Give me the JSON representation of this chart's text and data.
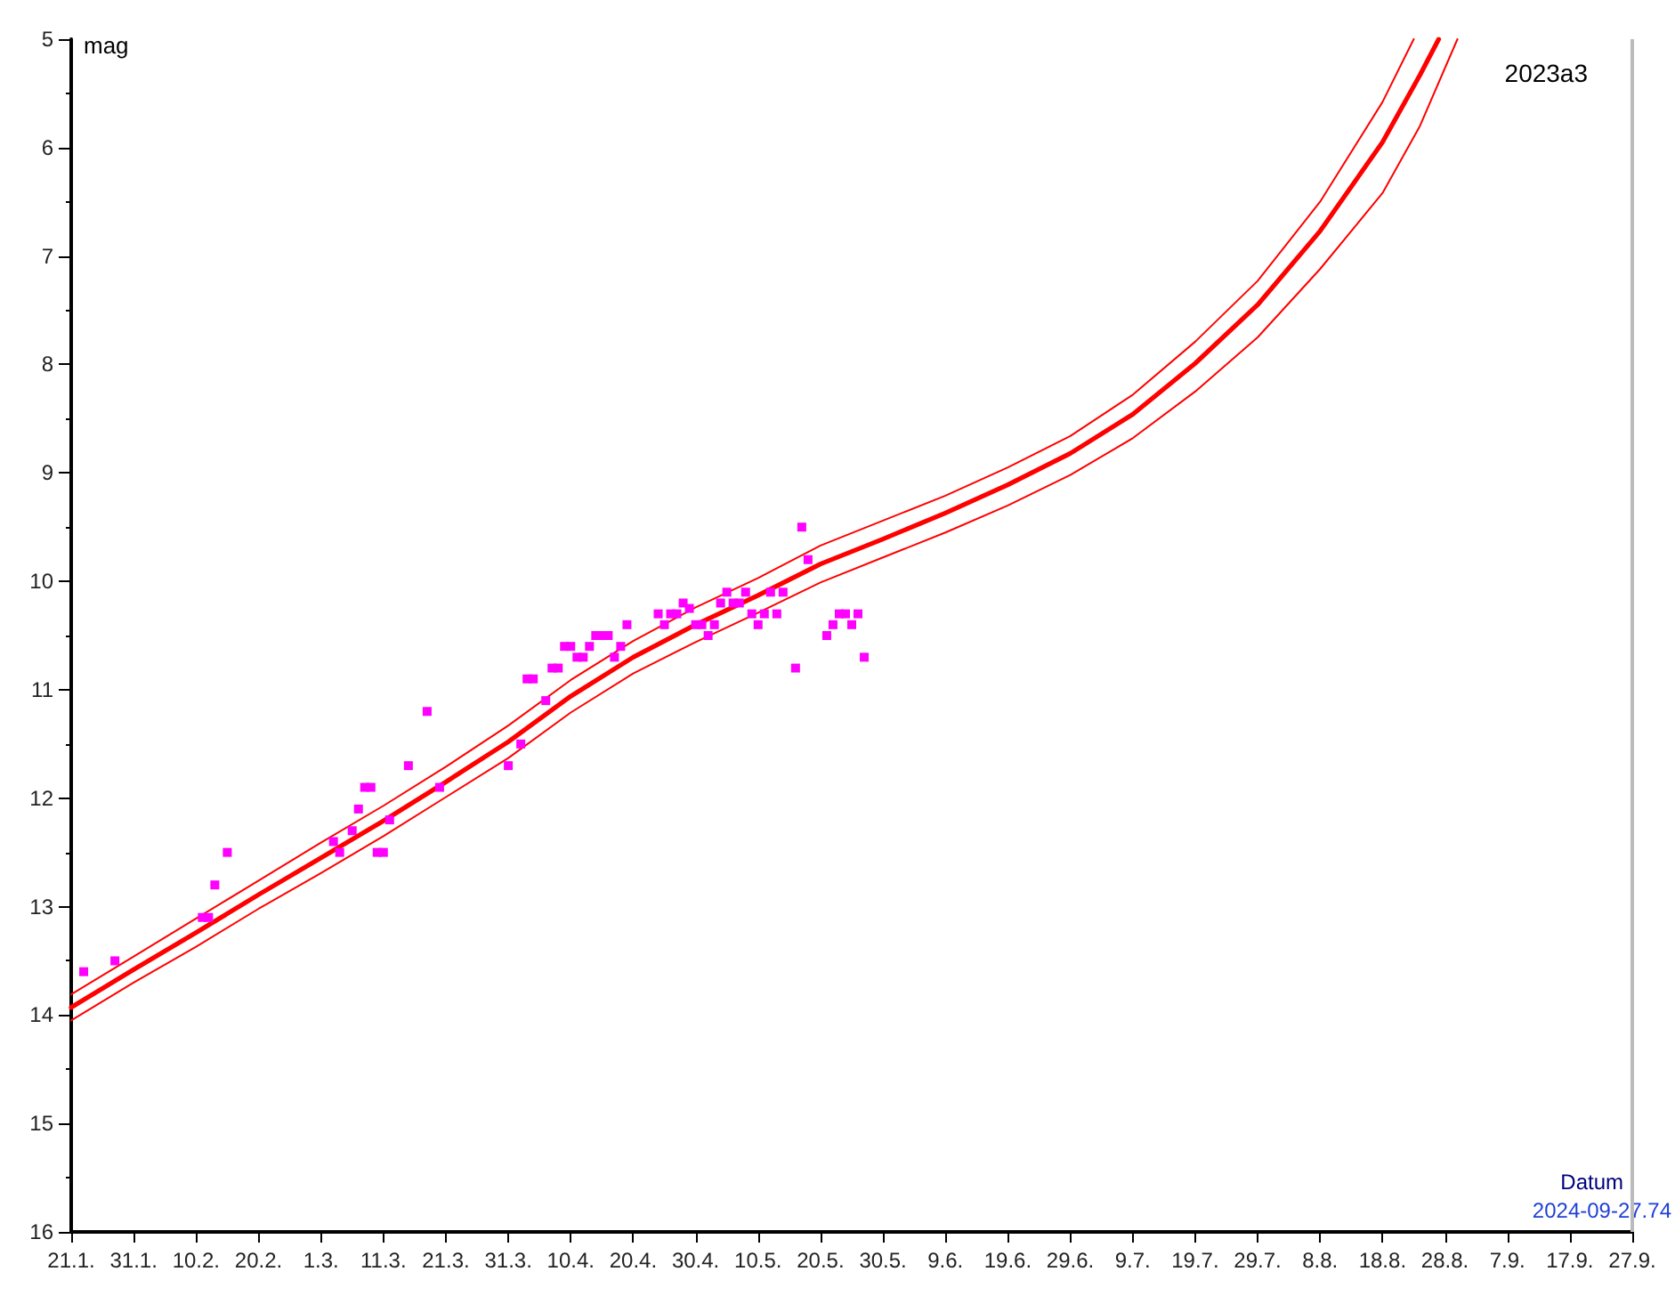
{
  "chart_data": {
    "type": "scatter",
    "title": "2023a3",
    "xlabel": "Datum",
    "ylabel": "mag",
    "xlim": [
      "2024-01-21",
      "2024-09-27"
    ],
    "xticks": [
      {
        "value": "2024-01-21",
        "label": "21.1."
      },
      {
        "value": "2024-01-31",
        "label": "31.1."
      },
      {
        "value": "2024-02-10",
        "label": "10.2."
      },
      {
        "value": "2024-02-20",
        "label": "20.2."
      },
      {
        "value": "2024-03-01",
        "label": "1.3."
      },
      {
        "value": "2024-03-11",
        "label": "11.3."
      },
      {
        "value": "2024-03-21",
        "label": "21.3."
      },
      {
        "value": "2024-03-31",
        "label": "31.3."
      },
      {
        "value": "2024-04-10",
        "label": "10.4."
      },
      {
        "value": "2024-04-20",
        "label": "20.4."
      },
      {
        "value": "2024-04-30",
        "label": "30.4."
      },
      {
        "value": "2024-05-10",
        "label": "10.5."
      },
      {
        "value": "2024-05-20",
        "label": "20.5."
      },
      {
        "value": "2024-05-30",
        "label": "30.5."
      },
      {
        "value": "2024-06-09",
        "label": "9.6."
      },
      {
        "value": "2024-06-19",
        "label": "19.6."
      },
      {
        "value": "2024-06-29",
        "label": "29.6."
      },
      {
        "value": "2024-07-09",
        "label": "9.7."
      },
      {
        "value": "2024-07-19",
        "label": "19.7."
      },
      {
        "value": "2024-07-29",
        "label": "29.7."
      },
      {
        "value": "2024-08-08",
        "label": "8.8."
      },
      {
        "value": "2024-08-18",
        "label": "18.8."
      },
      {
        "value": "2024-08-28",
        "label": "28.8."
      },
      {
        "value": "2024-09-07",
        "label": "7.9."
      },
      {
        "value": "2024-09-17",
        "label": "17.9."
      },
      {
        "value": "2024-09-27",
        "label": "27.9."
      }
    ],
    "ylim": [
      16,
      5
    ],
    "yticks": [
      5,
      {
        "value": 5.5,
        "label": null
      },
      6,
      {
        "value": 6.5,
        "label": null
      },
      7,
      {
        "value": 7.5,
        "label": null
      },
      8,
      {
        "value": 8.5,
        "label": null
      },
      9,
      {
        "value": 9.5,
        "label": null
      },
      10,
      {
        "value": 10.5,
        "label": null
      },
      11,
      {
        "value": 11.5,
        "label": null
      },
      12,
      {
        "value": 12.5,
        "label": null
      },
      13,
      {
        "value": 13.5,
        "label": null
      },
      14,
      {
        "value": 14.5,
        "label": null
      },
      15,
      {
        "value": 15.5,
        "label": null
      },
      16
    ],
    "ref_lines": [
      {
        "axis": "x",
        "value": "2024-09-27",
        "label": "2024-09-27.74",
        "color": "#bbbbbb"
      }
    ],
    "series": [
      {
        "type": "line",
        "color": "#ff0000",
        "x": [
          "2024-01-21",
          "2024-01-31",
          "2024-02-10",
          "2024-02-20",
          "2024-03-01",
          "2024-03-11",
          "2024-03-21",
          "2024-03-31",
          "2024-04-10",
          "2024-04-20",
          "2024-04-30",
          "2024-05-10",
          "2024-05-20",
          "2024-05-30",
          "2024-06-09",
          "2024-06-19",
          "2024-06-29",
          "2024-07-09",
          "2024-07-19",
          "2024-07-29",
          "2024-08-08",
          "2024-08-18",
          "2024-08-24",
          "2024-08-27"
        ],
        "values": [
          13.93,
          13.58,
          13.24,
          12.89,
          12.55,
          12.21,
          11.85,
          11.48,
          11.06,
          10.7,
          10.4,
          10.13,
          9.84,
          9.61,
          9.37,
          9.11,
          8.82,
          8.46,
          7.99,
          7.45,
          6.77,
          5.95,
          5.33,
          5.0
        ]
      },
      {
        "type": "line",
        "color": "#ff0000",
        "x": [
          "2024-01-21",
          "2024-01-31",
          "2024-02-10",
          "2024-02-20",
          "2024-03-01",
          "2024-03-11",
          "2024-03-21",
          "2024-03-31",
          "2024-04-10",
          "2024-04-20",
          "2024-04-30",
          "2024-05-10",
          "2024-05-20",
          "2024-05-30",
          "2024-06-09",
          "2024-06-19",
          "2024-06-29",
          "2024-07-09",
          "2024-07-19",
          "2024-07-29",
          "2024-08-08",
          "2024-08-18",
          "2024-08-23"
        ],
        "values": [
          13.81,
          13.46,
          13.11,
          12.76,
          12.41,
          12.07,
          11.71,
          11.33,
          10.91,
          10.55,
          10.24,
          9.97,
          9.67,
          9.44,
          9.21,
          8.95,
          8.66,
          8.28,
          7.79,
          7.23,
          6.5,
          5.58,
          5.0
        ]
      },
      {
        "type": "line",
        "color": "#ff0000",
        "x": [
          "2024-01-21",
          "2024-01-31",
          "2024-02-10",
          "2024-02-20",
          "2024-03-01",
          "2024-03-11",
          "2024-03-21",
          "2024-03-31",
          "2024-04-10",
          "2024-04-20",
          "2024-04-30",
          "2024-05-10",
          "2024-05-20",
          "2024-05-30",
          "2024-06-09",
          "2024-06-19",
          "2024-06-29",
          "2024-07-09",
          "2024-07-19",
          "2024-07-29",
          "2024-08-08",
          "2024-08-18",
          "2024-08-24",
          "2024-08-30"
        ],
        "values": [
          14.05,
          13.7,
          13.37,
          13.02,
          12.69,
          12.35,
          11.99,
          11.63,
          11.21,
          10.85,
          10.56,
          10.29,
          10.01,
          9.78,
          9.55,
          9.3,
          9.02,
          8.68,
          8.25,
          7.75,
          7.12,
          6.42,
          5.8,
          5.0
        ]
      },
      {
        "color": "#ff00ff",
        "marker": "square",
        "x": [
          "2024-01-23",
          "2024-01-28",
          "2024-02-11",
          "2024-02-12",
          "2024-02-13",
          "2024-02-15",
          "2024-03-03",
          "2024-03-04",
          "2024-03-06",
          "2024-03-07",
          "2024-03-08",
          "2024-03-09",
          "2024-03-10",
          "2024-03-11",
          "2024-03-12",
          "2024-03-15",
          "2024-03-18",
          "2024-03-20",
          "2024-03-31",
          "2024-04-02",
          "2024-04-03",
          "2024-04-04",
          "2024-04-06",
          "2024-04-07",
          "2024-04-08",
          "2024-04-09",
          "2024-04-10",
          "2024-04-11",
          "2024-04-12",
          "2024-04-13",
          "2024-04-14",
          "2024-04-15",
          "2024-04-16",
          "2024-04-17",
          "2024-04-18",
          "2024-04-19",
          "2024-04-24",
          "2024-04-25",
          "2024-04-26",
          "2024-04-27",
          "2024-04-28",
          "2024-04-29",
          "2024-04-30",
          "2024-05-01",
          "2024-05-02",
          "2024-05-03",
          "2024-05-04",
          "2024-05-05",
          "2024-05-06",
          "2024-05-07",
          "2024-05-08",
          "2024-05-09",
          "2024-05-10",
          "2024-05-11",
          "2024-05-12",
          "2024-05-13",
          "2024-05-14",
          "2024-05-16",
          "2024-05-17",
          "2024-05-18",
          "2024-05-21",
          "2024-05-22",
          "2024-05-23",
          "2024-05-24",
          "2024-05-25",
          "2024-05-26",
          "2024-05-27"
        ],
        "values": [
          13.6,
          13.5,
          13.1,
          13.1,
          12.8,
          12.5,
          12.4,
          12.5,
          12.3,
          12.1,
          11.9,
          11.9,
          12.5,
          12.5,
          12.2,
          11.7,
          11.2,
          11.9,
          11.7,
          11.5,
          10.9,
          10.9,
          11.1,
          10.8,
          10.8,
          10.6,
          10.6,
          10.7,
          10.7,
          10.6,
          10.5,
          10.5,
          10.5,
          10.7,
          10.6,
          10.4,
          10.3,
          10.4,
          10.3,
          10.3,
          10.2,
          10.25,
          10.4,
          10.4,
          10.5,
          10.4,
          10.2,
          10.1,
          10.2,
          10.2,
          10.1,
          10.3,
          10.4,
          10.3,
          10.1,
          10.3,
          10.1,
          10.8,
          9.5,
          9.8,
          10.5,
          10.4,
          10.3,
          10.3,
          10.4,
          10.3,
          10.7
        ]
      }
    ]
  }
}
